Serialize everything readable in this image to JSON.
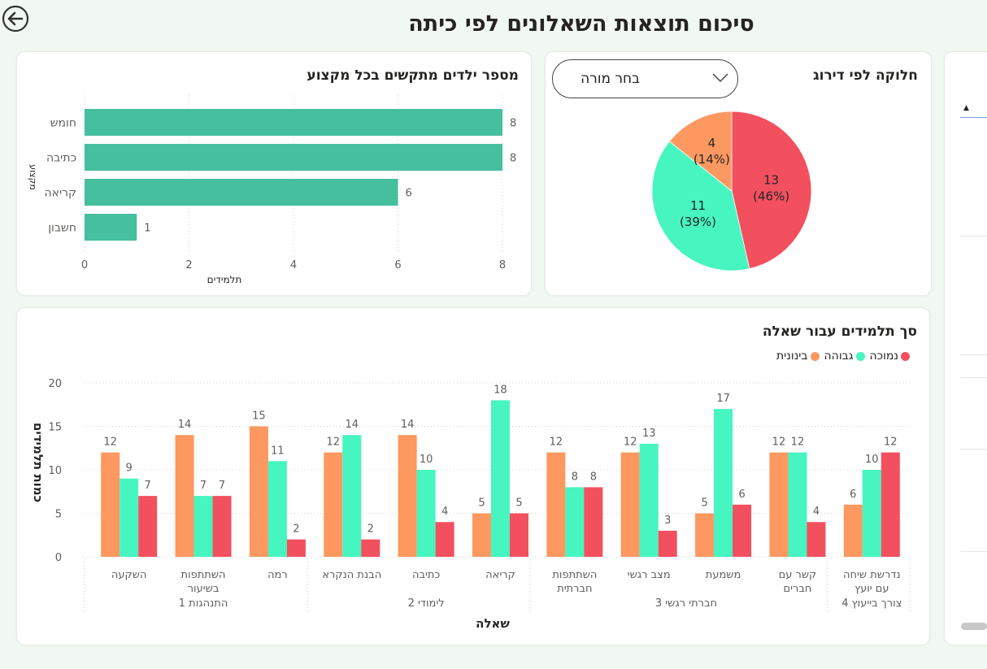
{
  "page": {
    "title": "סיכום תוצאות השאלונים לפי כיתה"
  },
  "colors": {
    "bar_teal": "#45bf9e",
    "orange": "#fd9860",
    "green": "#46f5c0",
    "red": "#f2505f",
    "page_bg": "#f1f7f1"
  },
  "icons": {
    "back": "arrow-left-circle-icon",
    "dropdown": "chevron-down-icon"
  },
  "filter": {
    "teacher_placeholder": "בחר מורה"
  },
  "side_panel": {
    "sort_arrow": "▲"
  },
  "cards": {
    "subjects_title": "מספר ילדים מתקשים בכל מקצוע",
    "pie_title": "חלוקה לפי דירוג",
    "questions_title": "סך תלמידים עבור שאלה"
  },
  "chart_data": [
    {
      "type": "bar",
      "orientation": "horizontal",
      "title": "מספר ילדים מתקשים בכל מקצוע",
      "xlabel": "תלמידים",
      "ylabel": "מקצוע",
      "categories": [
        "חומש",
        "כתיבה",
        "קריאה",
        "חשבון"
      ],
      "values": [
        8,
        8,
        6,
        1
      ],
      "xlim": [
        0,
        8
      ],
      "xticks": [
        "0",
        "2",
        "4",
        "6",
        "8"
      ],
      "grid": true
    },
    {
      "type": "pie",
      "title": "חלוקה לפי דירוג",
      "slices": [
        {
          "name": "נמוכה",
          "value": 13,
          "label_count": "13",
          "label_pct": "(46%)"
        },
        {
          "name": "גבוהה",
          "value": 11,
          "label_count": "11",
          "label_pct": "(39%)"
        },
        {
          "name": "בינונית",
          "value": 4,
          "label_count": "4",
          "label_pct": "(14%)"
        }
      ]
    },
    {
      "type": "bar",
      "title": "סך תלמידים עבור שאלה",
      "xlabel": "שאלה",
      "ylabel": "כמות תלמידים",
      "ylim": [
        0,
        20
      ],
      "yticks": [
        "0",
        "5",
        "10",
        "15",
        "20"
      ],
      "legend": [
        "נמוכה",
        "גבוהה",
        "בינונית"
      ],
      "legend_position": "top-right",
      "categories": [
        {
          "label": [
            "השקעה"
          ]
        },
        {
          "label": [
            "השתתפות",
            "בשיעור"
          ]
        },
        {
          "label": [
            "רמה"
          ]
        },
        {
          "label": [
            "הבנת הנקרא"
          ]
        },
        {
          "label": [
            "כתיבה"
          ]
        },
        {
          "label": [
            "קריאה"
          ]
        },
        {
          "label": [
            "השתתפות",
            "חברתית"
          ]
        },
        {
          "label": [
            "מצב רגשי"
          ]
        },
        {
          "label": [
            "משמעת"
          ]
        },
        {
          "label": [
            "קשר עם",
            "חברים"
          ]
        },
        {
          "label": [
            "נדרשת שיחה",
            "עם יועץ"
          ]
        }
      ],
      "groups": [
        {
          "label": "התנהגות 1",
          "span": [
            0,
            2
          ]
        },
        {
          "label": "לימודי 2",
          "span": [
            3,
            5
          ]
        },
        {
          "label": "חברתי רגשי 3",
          "span": [
            6,
            9
          ]
        },
        {
          "label": "צורך בייעוץ 4",
          "span": [
            10,
            10
          ]
        }
      ],
      "series": [
        {
          "name": "בינונית",
          "values": [
            12,
            14,
            15,
            12,
            14,
            5,
            12,
            12,
            5,
            12,
            6
          ]
        },
        {
          "name": "גבוהה",
          "values": [
            9,
            7,
            11,
            14,
            10,
            18,
            8,
            13,
            17,
            12,
            10
          ]
        },
        {
          "name": "נמוכה",
          "values": [
            7,
            7,
            2,
            2,
            4,
            5,
            8,
            3,
            6,
            4,
            12
          ]
        }
      ]
    }
  ]
}
